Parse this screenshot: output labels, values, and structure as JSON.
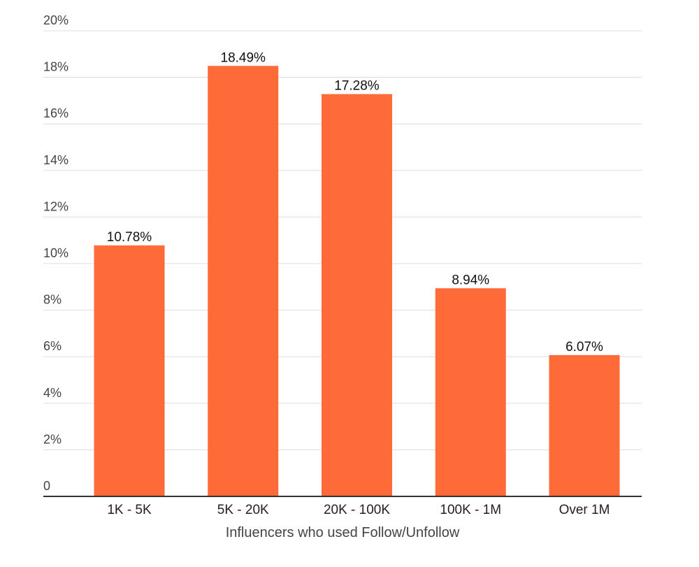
{
  "chart_data": {
    "type": "bar",
    "title": "",
    "xlabel": "Influencers who used Follow/Unfollow",
    "ylabel": "",
    "categories": [
      "1K - 5K",
      "5K - 20K",
      "20K - 100K",
      "100K - 1M",
      "Over 1M"
    ],
    "values": [
      10.78,
      18.49,
      17.28,
      8.94,
      6.07
    ],
    "data_labels": [
      "10.78%",
      "18.49%",
      "17.28%",
      "8.94%",
      "6.07%"
    ],
    "ylim": [
      0,
      20
    ],
    "y_ticks": [
      0,
      2,
      4,
      6,
      8,
      10,
      12,
      14,
      16,
      18,
      20
    ],
    "y_tick_labels": [
      "0",
      "2%",
      "4%",
      "6%",
      "8%",
      "10%",
      "12%",
      "14%",
      "16%",
      "18%",
      "20%"
    ],
    "grid": true,
    "legend": "none",
    "bar_color": "#ff6a39"
  }
}
